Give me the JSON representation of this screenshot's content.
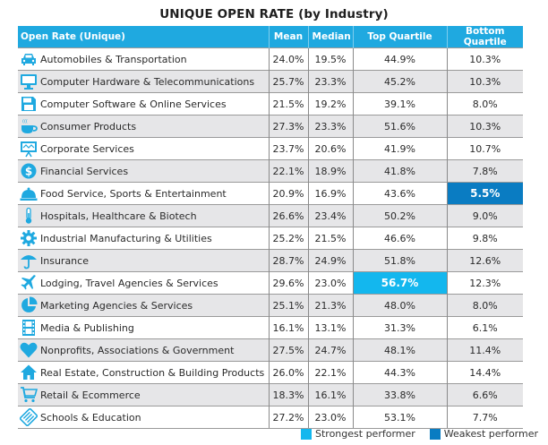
{
  "title": "UNIQUE OPEN RATE (by Industry)",
  "columns": [
    "Open Rate (Unique)",
    "Mean",
    "Median",
    "Top Quartile",
    "Bottom Quartile"
  ],
  "colors": {
    "header": "#1fa9e0",
    "strongest": "#13b7ee",
    "weakest": "#0a7cc2",
    "icon": "#1fa9e0"
  },
  "rows": [
    {
      "icon": "car-icon",
      "name": "Automobiles & Transportation",
      "mean": "24.0%",
      "median": "19.5%",
      "top": "44.9%",
      "bottom": "10.3%"
    },
    {
      "icon": "monitor-icon",
      "name": "Computer Hardware & Telecommunications",
      "mean": "25.7%",
      "median": "23.3%",
      "top": "45.2%",
      "bottom": "10.3%"
    },
    {
      "icon": "floppy-disk-icon",
      "name": "Computer Software & Online Services",
      "mean": "21.5%",
      "median": "19.2%",
      "top": "39.1%",
      "bottom": "8.0%"
    },
    {
      "icon": "coffee-cup-icon",
      "name": "Consumer Products",
      "mean": "27.3%",
      "median": "23.3%",
      "top": "51.6%",
      "bottom": "10.3%"
    },
    {
      "icon": "presentation-board-icon",
      "name": "Corporate Services",
      "mean": "23.7%",
      "median": "20.6%",
      "top": "41.9%",
      "bottom": "10.7%"
    },
    {
      "icon": "dollar-coin-icon",
      "name": "Financial Services",
      "mean": "22.1%",
      "median": "18.9%",
      "top": "41.8%",
      "bottom": "7.8%"
    },
    {
      "icon": "service-bell-icon",
      "name": "Food Service, Sports & Entertainment",
      "mean": "20.9%",
      "median": "16.9%",
      "top": "43.6%",
      "bottom": "5.5%",
      "highlight": "bottom-weakest"
    },
    {
      "icon": "thermometer-icon",
      "name": "Hospitals, Healthcare & Biotech",
      "mean": "26.6%",
      "median": "23.4%",
      "top": "50.2%",
      "bottom": "9.0%"
    },
    {
      "icon": "gear-icon",
      "name": "Industrial Manufacturing & Utilities",
      "mean": "25.2%",
      "median": "21.5%",
      "top": "46.6%",
      "bottom": "9.8%"
    },
    {
      "icon": "umbrella-icon",
      "name": "Insurance",
      "mean": "28.7%",
      "median": "24.9%",
      "top": "51.8%",
      "bottom": "12.6%"
    },
    {
      "icon": "airplane-icon",
      "name": "Lodging, Travel Agencies & Services",
      "mean": "29.6%",
      "median": "23.0%",
      "top": "56.7%",
      "bottom": "12.3%",
      "highlight": "top-strongest"
    },
    {
      "icon": "pie-chart-icon",
      "name": "Marketing Agencies & Services",
      "mean": "25.1%",
      "median": "21.3%",
      "top": "48.0%",
      "bottom": "8.0%"
    },
    {
      "icon": "film-strip-icon",
      "name": "Media & Publishing",
      "mean": "16.1%",
      "median": "13.1%",
      "top": "31.3%",
      "bottom": "6.1%"
    },
    {
      "icon": "heart-icon",
      "name": "Nonprofits, Associations & Government",
      "mean": "27.5%",
      "median": "24.7%",
      "top": "48.1%",
      "bottom": "11.4%"
    },
    {
      "icon": "house-icon",
      "name": "Real Estate, Construction & Building Products",
      "mean": "26.0%",
      "median": "22.1%",
      "top": "44.3%",
      "bottom": "14.4%"
    },
    {
      "icon": "shopping-cart-icon",
      "name": "Retail & Ecommerce",
      "mean": "18.3%",
      "median": "16.1%",
      "top": "33.8%",
      "bottom": "6.6%"
    },
    {
      "icon": "books-icon",
      "name": "Schools & Education",
      "mean": "27.2%",
      "median": "23.0%",
      "top": "53.1%",
      "bottom": "7.7%"
    }
  ],
  "legend": {
    "strongest": "Strongest performer",
    "weakest": "Weakest performer"
  },
  "chart_data": {
    "type": "table",
    "title": "UNIQUE OPEN RATE (by Industry)",
    "columns": [
      "Open Rate (Unique)",
      "Mean",
      "Median",
      "Top Quartile",
      "Bottom Quartile"
    ],
    "categories": [
      "Automobiles & Transportation",
      "Computer Hardware & Telecommunications",
      "Computer Software & Online Services",
      "Consumer Products",
      "Corporate Services",
      "Financial Services",
      "Food Service, Sports & Entertainment",
      "Hospitals, Healthcare & Biotech",
      "Industrial Manufacturing & Utilities",
      "Insurance",
      "Lodging, Travel Agencies & Services",
      "Marketing Agencies & Services",
      "Media & Publishing",
      "Nonprofits, Associations & Government",
      "Real Estate, Construction & Building Products",
      "Retail & Ecommerce",
      "Schools & Education"
    ],
    "series": [
      {
        "name": "Mean",
        "values": [
          24.0,
          25.7,
          21.5,
          27.3,
          23.7,
          22.1,
          20.9,
          26.6,
          25.2,
          28.7,
          29.6,
          25.1,
          16.1,
          27.5,
          26.0,
          18.3,
          27.2
        ]
      },
      {
        "name": "Median",
        "values": [
          19.5,
          23.3,
          19.2,
          23.3,
          20.6,
          18.9,
          16.9,
          23.4,
          21.5,
          24.9,
          23.0,
          21.3,
          13.1,
          24.7,
          22.1,
          16.1,
          23.0
        ]
      },
      {
        "name": "Top Quartile",
        "values": [
          44.9,
          45.2,
          39.1,
          51.6,
          41.9,
          41.8,
          43.6,
          50.2,
          46.6,
          51.8,
          56.7,
          48.0,
          31.3,
          48.1,
          44.3,
          33.8,
          53.1
        ]
      },
      {
        "name": "Bottom Quartile",
        "values": [
          10.3,
          10.3,
          8.0,
          10.3,
          10.7,
          7.8,
          5.5,
          9.0,
          9.8,
          12.6,
          12.3,
          8.0,
          6.1,
          11.4,
          14.4,
          6.6,
          7.7
        ]
      }
    ],
    "unit": "%",
    "annotations": [
      {
        "label": "Strongest performer",
        "row": "Lodging, Travel Agencies & Services",
        "column": "Top Quartile",
        "value": 56.7
      },
      {
        "label": "Weakest performer",
        "row": "Food Service, Sports & Entertainment",
        "column": "Bottom Quartile",
        "value": 5.5
      }
    ],
    "legend": [
      "Strongest performer",
      "Weakest performer"
    ],
    "legend_position": "bottom-right"
  }
}
